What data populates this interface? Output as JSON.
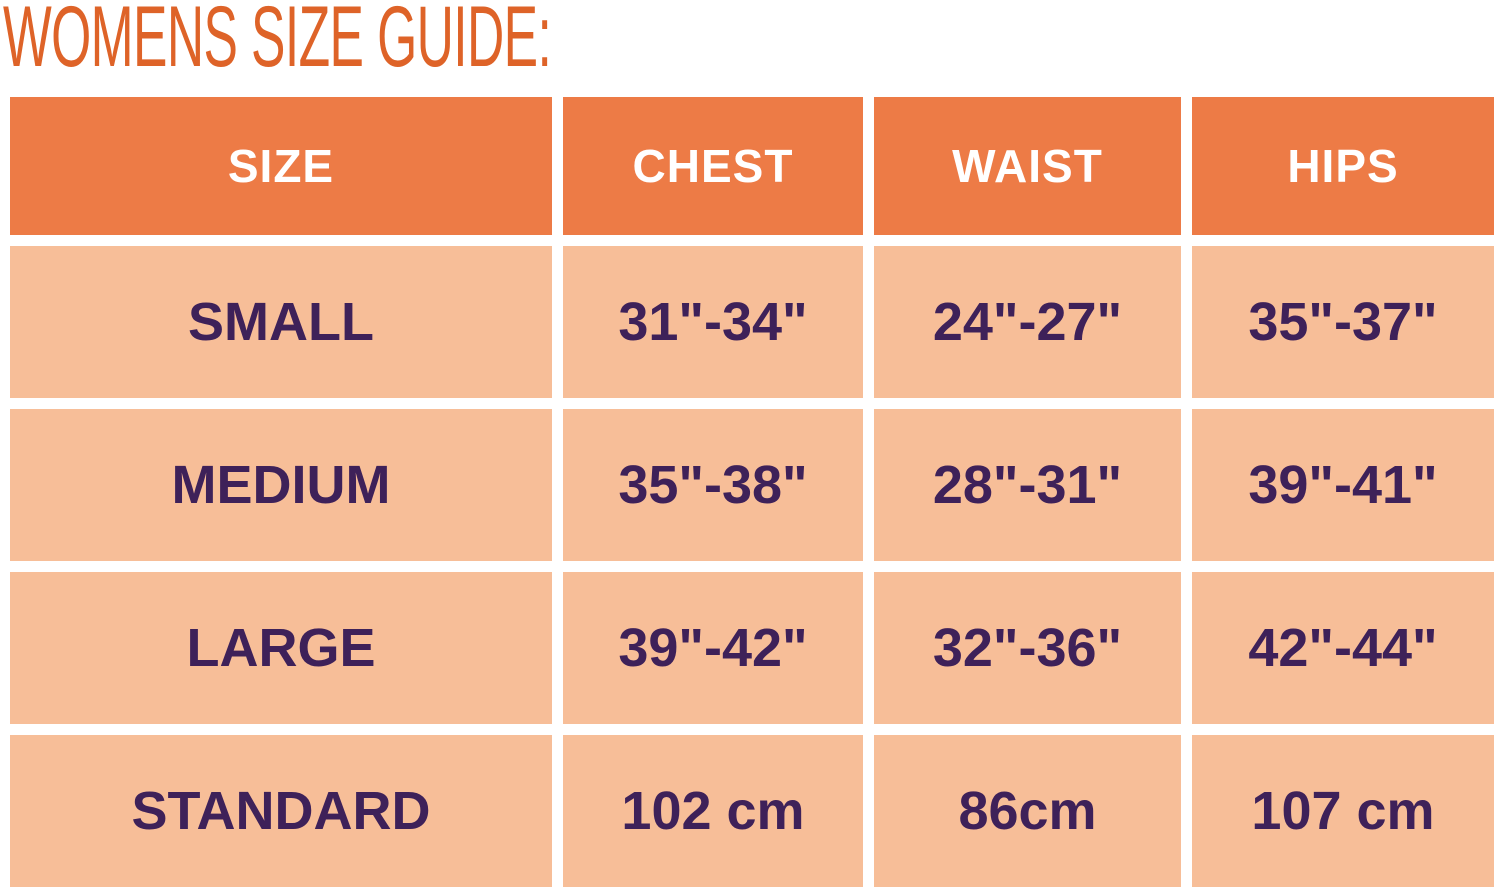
{
  "title": "WOMENS SIZE GUIDE:",
  "colors": {
    "title_text": "#DE6328",
    "header_bg": "#ED7B46",
    "header_text": "#FFFFFF",
    "cell_bg": "#F7BE98",
    "cell_text": "#3E2159",
    "gutter": "#FFFFFF"
  },
  "chart_data": {
    "type": "table",
    "title": "WOMENS SIZE GUIDE:",
    "columns": [
      "SIZE",
      "CHEST",
      "WAIST",
      "HIPS"
    ],
    "rows": [
      [
        "SMALL",
        "31\"-34\"",
        "24\"-27\"",
        "35\"-37\""
      ],
      [
        "MEDIUM",
        "35\"-38\"",
        "28\"-31\"",
        "39\"-41\""
      ],
      [
        "LARGE",
        "39\"-42\"",
        "32\"-36\"",
        "42\"-44\""
      ],
      [
        "STANDARD",
        "102 cm",
        "86cm",
        "107 cm"
      ]
    ],
    "layout": {
      "header_position": "top",
      "grid": "white gutters between all cells",
      "units_rows_1_3": "inches",
      "units_row_4": "centimeters"
    }
  }
}
